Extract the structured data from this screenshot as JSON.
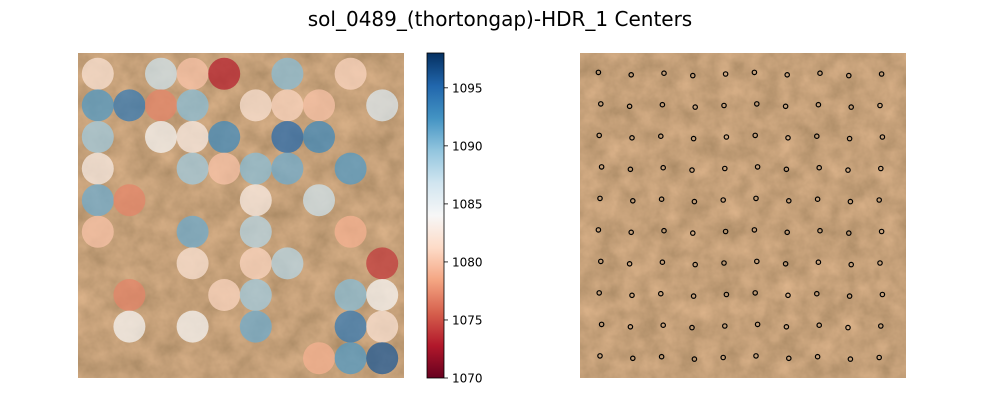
{
  "figure": {
    "title": "sol_0489_(thortongap)-HDR_1 Centers"
  },
  "colors": {
    "rock_base": "#8a5a3a",
    "rock_dark": "#5e4a3a",
    "rock_light": "#b88a5c",
    "marker": "#000000",
    "cmap_stops": [
      "#67001f",
      "#b2182b",
      "#d6604d",
      "#f4a582",
      "#fddbc7",
      "#f7f7f7",
      "#d1e5f0",
      "#92c5de",
      "#4393c3",
      "#2166ac",
      "#053061"
    ]
  },
  "chart_data": [
    {
      "type": "scatter",
      "title": "",
      "xlabel": "",
      "ylabel": "",
      "grid": false,
      "axes_visible": false,
      "colorbar": {
        "vmin": 1070,
        "vmax": 1098,
        "ticks": [
          1070,
          1075,
          1080,
          1085,
          1090,
          1095
        ],
        "tick_labels": [
          "1070",
          "1075",
          "1080",
          "1085",
          "1090",
          "1095"
        ]
      },
      "points": [
        {
          "x": 0,
          "y": 0,
          "v": 1082
        },
        {
          "x": 2,
          "y": 0,
          "v": 1087
        },
        {
          "x": 3,
          "y": 0,
          "v": 1080
        },
        {
          "x": 4,
          "y": 0,
          "v": 1073
        },
        {
          "x": 6,
          "y": 0,
          "v": 1090
        },
        {
          "x": 8,
          "y": 0,
          "v": 1081
        },
        {
          "x": 0,
          "y": 1,
          "v": 1092
        },
        {
          "x": 1,
          "y": 1,
          "v": 1094
        },
        {
          "x": 2,
          "y": 1,
          "v": 1077
        },
        {
          "x": 3,
          "y": 1,
          "v": 1090
        },
        {
          "x": 5,
          "y": 1,
          "v": 1082
        },
        {
          "x": 6,
          "y": 1,
          "v": 1081
        },
        {
          "x": 7,
          "y": 1,
          "v": 1080
        },
        {
          "x": 9,
          "y": 1,
          "v": 1086
        },
        {
          "x": 0,
          "y": 2,
          "v": 1089
        },
        {
          "x": 2,
          "y": 2,
          "v": 1084
        },
        {
          "x": 3,
          "y": 2,
          "v": 1083
        },
        {
          "x": 4,
          "y": 2,
          "v": 1093
        },
        {
          "x": 6,
          "y": 2,
          "v": 1095
        },
        {
          "x": 7,
          "y": 2,
          "v": 1093
        },
        {
          "x": 0,
          "y": 3,
          "v": 1083
        },
        {
          "x": 3,
          "y": 3,
          "v": 1089
        },
        {
          "x": 4,
          "y": 3,
          "v": 1080
        },
        {
          "x": 5,
          "y": 3,
          "v": 1090
        },
        {
          "x": 6,
          "y": 3,
          "v": 1091
        },
        {
          "x": 8,
          "y": 3,
          "v": 1092
        },
        {
          "x": 0,
          "y": 4,
          "v": 1091
        },
        {
          "x": 1,
          "y": 4,
          "v": 1077
        },
        {
          "x": 5,
          "y": 4,
          "v": 1083
        },
        {
          "x": 7,
          "y": 4,
          "v": 1087
        },
        {
          "x": 0,
          "y": 5,
          "v": 1080
        },
        {
          "x": 3,
          "y": 5,
          "v": 1091
        },
        {
          "x": 5,
          "y": 5,
          "v": 1088
        },
        {
          "x": 8,
          "y": 5,
          "v": 1079
        },
        {
          "x": 3,
          "y": 6,
          "v": 1082
        },
        {
          "x": 5,
          "y": 6,
          "v": 1081
        },
        {
          "x": 6,
          "y": 6,
          "v": 1088
        },
        {
          "x": 9,
          "y": 6,
          "v": 1074
        },
        {
          "x": 1,
          "y": 7,
          "v": 1077
        },
        {
          "x": 4,
          "y": 7,
          "v": 1081
        },
        {
          "x": 5,
          "y": 7,
          "v": 1089
        },
        {
          "x": 8,
          "y": 7,
          "v": 1090
        },
        {
          "x": 9,
          "y": 7,
          "v": 1084
        },
        {
          "x": 1,
          "y": 8,
          "v": 1084
        },
        {
          "x": 3,
          "y": 8,
          "v": 1084
        },
        {
          "x": 5,
          "y": 8,
          "v": 1091
        },
        {
          "x": 8,
          "y": 8,
          "v": 1094
        },
        {
          "x": 9,
          "y": 8,
          "v": 1082
        },
        {
          "x": 7,
          "y": 9,
          "v": 1079
        },
        {
          "x": 8,
          "y": 9,
          "v": 1092
        },
        {
          "x": 9,
          "y": 9,
          "v": 1096
        }
      ]
    },
    {
      "type": "scatter",
      "title": "",
      "xlabel": "",
      "ylabel": "",
      "grid": false,
      "axes_visible": false,
      "marker": "hollow circle",
      "points": [
        {
          "x": 0,
          "y": 0
        },
        {
          "x": 1,
          "y": 0
        },
        {
          "x": 2,
          "y": 0
        },
        {
          "x": 3,
          "y": 0
        },
        {
          "x": 4,
          "y": 0
        },
        {
          "x": 5,
          "y": 0
        },
        {
          "x": 6,
          "y": 0
        },
        {
          "x": 7,
          "y": 0
        },
        {
          "x": 8,
          "y": 0
        },
        {
          "x": 9,
          "y": 0
        },
        {
          "x": 0,
          "y": 1
        },
        {
          "x": 1,
          "y": 1
        },
        {
          "x": 2,
          "y": 1
        },
        {
          "x": 3,
          "y": 1
        },
        {
          "x": 4,
          "y": 1
        },
        {
          "x": 5,
          "y": 1
        },
        {
          "x": 6,
          "y": 1
        },
        {
          "x": 7,
          "y": 1
        },
        {
          "x": 8,
          "y": 1
        },
        {
          "x": 9,
          "y": 1
        },
        {
          "x": 0,
          "y": 2
        },
        {
          "x": 1,
          "y": 2
        },
        {
          "x": 2,
          "y": 2
        },
        {
          "x": 3,
          "y": 2
        },
        {
          "x": 4,
          "y": 2
        },
        {
          "x": 5,
          "y": 2
        },
        {
          "x": 6,
          "y": 2
        },
        {
          "x": 7,
          "y": 2
        },
        {
          "x": 8,
          "y": 2
        },
        {
          "x": 9,
          "y": 2
        },
        {
          "x": 0,
          "y": 3
        },
        {
          "x": 1,
          "y": 3
        },
        {
          "x": 2,
          "y": 3
        },
        {
          "x": 3,
          "y": 3
        },
        {
          "x": 4,
          "y": 3
        },
        {
          "x": 5,
          "y": 3
        },
        {
          "x": 6,
          "y": 3
        },
        {
          "x": 7,
          "y": 3
        },
        {
          "x": 8,
          "y": 3
        },
        {
          "x": 9,
          "y": 3
        },
        {
          "x": 0,
          "y": 4
        },
        {
          "x": 1,
          "y": 4
        },
        {
          "x": 2,
          "y": 4
        },
        {
          "x": 3,
          "y": 4
        },
        {
          "x": 4,
          "y": 4
        },
        {
          "x": 5,
          "y": 4
        },
        {
          "x": 6,
          "y": 4
        },
        {
          "x": 7,
          "y": 4
        },
        {
          "x": 8,
          "y": 4
        },
        {
          "x": 9,
          "y": 4
        },
        {
          "x": 0,
          "y": 5
        },
        {
          "x": 1,
          "y": 5
        },
        {
          "x": 2,
          "y": 5
        },
        {
          "x": 3,
          "y": 5
        },
        {
          "x": 4,
          "y": 5
        },
        {
          "x": 5,
          "y": 5
        },
        {
          "x": 6,
          "y": 5
        },
        {
          "x": 7,
          "y": 5
        },
        {
          "x": 8,
          "y": 5
        },
        {
          "x": 9,
          "y": 5
        },
        {
          "x": 0,
          "y": 6
        },
        {
          "x": 1,
          "y": 6
        },
        {
          "x": 2,
          "y": 6
        },
        {
          "x": 3,
          "y": 6
        },
        {
          "x": 4,
          "y": 6
        },
        {
          "x": 5,
          "y": 6
        },
        {
          "x": 6,
          "y": 6
        },
        {
          "x": 7,
          "y": 6
        },
        {
          "x": 8,
          "y": 6
        },
        {
          "x": 9,
          "y": 6
        },
        {
          "x": 0,
          "y": 7
        },
        {
          "x": 1,
          "y": 7
        },
        {
          "x": 2,
          "y": 7
        },
        {
          "x": 3,
          "y": 7
        },
        {
          "x": 4,
          "y": 7
        },
        {
          "x": 5,
          "y": 7
        },
        {
          "x": 6,
          "y": 7
        },
        {
          "x": 7,
          "y": 7
        },
        {
          "x": 8,
          "y": 7
        },
        {
          "x": 9,
          "y": 7
        },
        {
          "x": 0,
          "y": 8
        },
        {
          "x": 1,
          "y": 8
        },
        {
          "x": 2,
          "y": 8
        },
        {
          "x": 3,
          "y": 8
        },
        {
          "x": 4,
          "y": 8
        },
        {
          "x": 5,
          "y": 8
        },
        {
          "x": 6,
          "y": 8
        },
        {
          "x": 7,
          "y": 8
        },
        {
          "x": 8,
          "y": 8
        },
        {
          "x": 9,
          "y": 8
        },
        {
          "x": 0,
          "y": 9
        },
        {
          "x": 1,
          "y": 9
        },
        {
          "x": 2,
          "y": 9
        },
        {
          "x": 3,
          "y": 9
        },
        {
          "x": 4,
          "y": 9
        },
        {
          "x": 5,
          "y": 9
        },
        {
          "x": 6,
          "y": 9
        },
        {
          "x": 7,
          "y": 9
        },
        {
          "x": 8,
          "y": 9
        },
        {
          "x": 9,
          "y": 9
        }
      ]
    }
  ]
}
